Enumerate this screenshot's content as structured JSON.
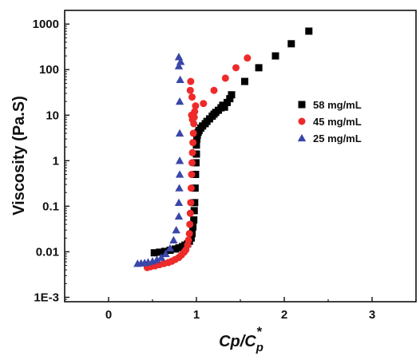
{
  "chart_data": {
    "type": "scatter",
    "xlabel_main": "Cp/C",
    "xlabel_sub": "p",
    "xlabel_sup": "*",
    "ylabel": "Viscosity (Pa.S)",
    "xlim": [
      -0.5,
      3.5
    ],
    "ylim": [
      0.0008,
      2000
    ],
    "y_scale": "log",
    "grid": false,
    "legend_position": "right-middle",
    "x_ticks": [
      0,
      1,
      2,
      3
    ],
    "x_tick_labels": [
      "0",
      "1",
      "2",
      "3"
    ],
    "y_ticks": [
      0.001,
      0.01,
      0.1,
      1,
      10,
      100,
      1000
    ],
    "y_tick_labels": [
      "1E-3",
      "0.01",
      "0.1",
      "1",
      "10",
      "100",
      "1000"
    ],
    "series": [
      {
        "name": "58 mg/mL",
        "marker": "square",
        "color": "#000000",
        "x": [
          0.52,
          0.58,
          0.64,
          0.7,
          0.76,
          0.8,
          0.84,
          0.87,
          0.9,
          0.92,
          0.94,
          0.95,
          0.96,
          0.97,
          0.975,
          0.98,
          0.985,
          0.99,
          0.995,
          1.0,
          1.0,
          1.005,
          1.01,
          1.02,
          1.03,
          1.05,
          1.07,
          1.1,
          1.12,
          1.15,
          1.18,
          1.2,
          1.22,
          1.25,
          1.28,
          1.3,
          1.32,
          1.35,
          1.38,
          1.4,
          1.55,
          1.71,
          1.9,
          2.08,
          2.28
        ],
        "y": [
          0.0095,
          0.0098,
          0.0102,
          0.0108,
          0.0115,
          0.0122,
          0.013,
          0.014,
          0.015,
          0.017,
          0.02,
          0.025,
          0.035,
          0.05,
          0.08,
          0.12,
          0.25,
          0.5,
          0.9,
          1.4,
          2.2,
          3.0,
          3.6,
          4.2,
          4.6,
          5.2,
          5.8,
          6.5,
          7.3,
          8.3,
          9.5,
          10.5,
          11.5,
          12.8,
          14.5,
          16.5,
          15.0,
          19.0,
          23.0,
          28.0,
          55.0,
          110.0,
          200.0,
          370.0,
          700.0
        ]
      },
      {
        "name": "45 mg/mL",
        "marker": "circle",
        "color": "#ee2a2a",
        "x": [
          0.44,
          0.48,
          0.53,
          0.58,
          0.63,
          0.68,
          0.72,
          0.76,
          0.8,
          0.83,
          0.86,
          0.88,
          0.9,
          0.91,
          0.92,
          0.925,
          0.93,
          0.935,
          0.94,
          0.945,
          0.95,
          0.955,
          0.96,
          0.965,
          0.97,
          0.975,
          0.98,
          0.99,
          0.95,
          0.93,
          0.935,
          0.945,
          0.955,
          1.08,
          1.2,
          1.33,
          1.45,
          1.58
        ],
        "y": [
          0.0045,
          0.0047,
          0.0049,
          0.0052,
          0.0055,
          0.0058,
          0.0062,
          0.0068,
          0.0075,
          0.0085,
          0.0098,
          0.011,
          0.014,
          0.018,
          0.025,
          0.04,
          0.07,
          0.12,
          0.25,
          0.5,
          0.9,
          1.5,
          2.5,
          4.0,
          6.5,
          9.0,
          12.0,
          16.0,
          25.0,
          35.0,
          55.0,
          10.0,
          8.0,
          18.0,
          35.0,
          65.0,
          110.0,
          180.0
        ]
      },
      {
        "name": "25 mg/mL",
        "marker": "triangle",
        "color": "#3a46a8",
        "x": [
          0.33,
          0.37,
          0.41,
          0.45,
          0.5,
          0.55,
          0.6,
          0.65,
          0.7,
          0.74,
          0.77,
          0.8,
          0.8,
          0.805,
          0.81,
          0.81,
          0.81,
          0.81,
          0.815,
          0.82,
          0.8,
          0.8
        ],
        "y": [
          0.0055,
          0.0056,
          0.0057,
          0.0059,
          0.0062,
          0.0067,
          0.0075,
          0.009,
          0.012,
          0.018,
          0.03,
          0.06,
          0.12,
          0.25,
          0.5,
          1.0,
          4.0,
          20.0,
          60.0,
          150.0,
          120.0,
          190.0
        ]
      }
    ]
  }
}
